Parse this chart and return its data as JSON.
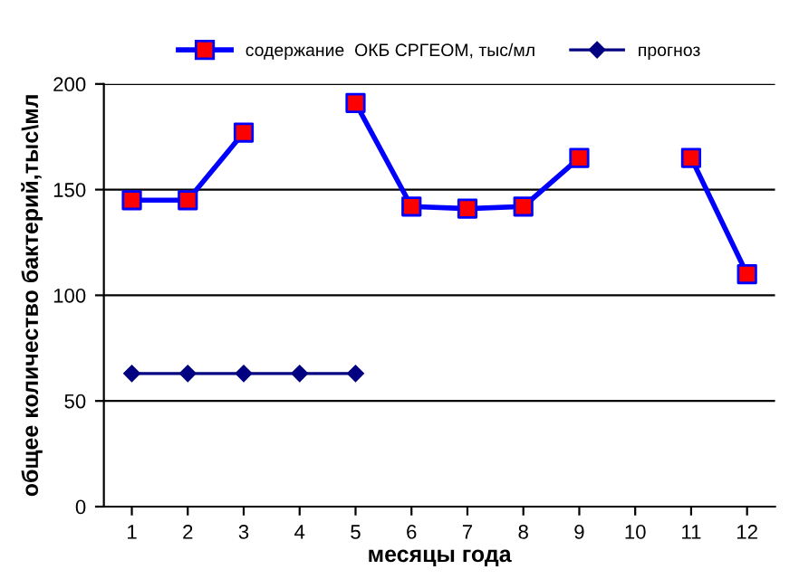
{
  "chart_data": {
    "type": "line",
    "xlabel": "месяцы года",
    "ylabel": "общее количество бактерий,тыс\\мл",
    "categories": [
      "1",
      "2",
      "3",
      "4",
      "5",
      "6",
      "7",
      "8",
      "9",
      "10",
      "11",
      "12"
    ],
    "series": [
      {
        "name": "содержание  ОКБ СРГЕОМ, тыс/мл",
        "color": "#0000ff",
        "colors": [
          "#ff0000",
          "#ff0000",
          "#ff0000",
          "#ff0000",
          "#ff0000",
          "#ff0000",
          "#ff0000",
          "#ff0000",
          "#ff0000",
          "#ff0000",
          "#ff0000",
          "#ff0000"
        ],
        "marker": "square",
        "values": [
          145,
          145,
          177,
          null,
          191,
          142,
          141,
          142,
          165,
          null,
          165,
          110
        ]
      },
      {
        "name": "прогноз",
        "color": "#000080",
        "marker": "diamond",
        "values": [
          63,
          63,
          63,
          63,
          63,
          null,
          null,
          null,
          null,
          null,
          null,
          null
        ]
      }
    ],
    "ylim": [
      0,
      200
    ],
    "yticks": [
      0,
      50,
      100,
      150,
      200
    ],
    "grid": "y",
    "legend": "top",
    "line_style": "solid"
  }
}
